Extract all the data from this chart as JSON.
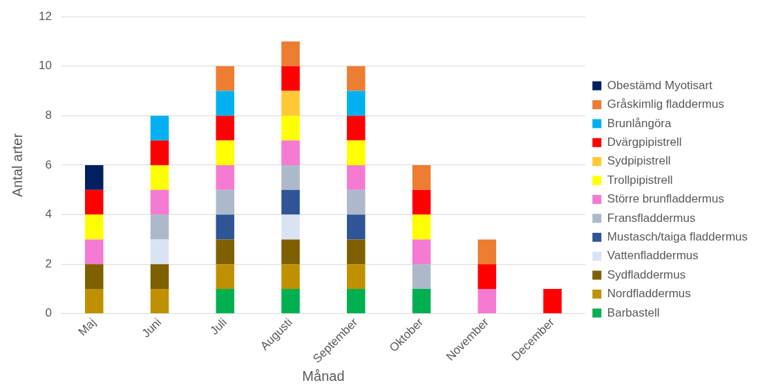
{
  "chart_data": {
    "type": "bar",
    "stacked": true,
    "xlabel": "Månad",
    "ylabel": "Antal arter",
    "categories": [
      "Maj",
      "Juni",
      "Juli",
      "Augusti",
      "September",
      "Oktober",
      "November",
      "December"
    ],
    "ylim": [
      0,
      12
    ],
    "yticks": [
      0,
      2,
      4,
      6,
      8,
      10,
      12
    ],
    "grid": "y",
    "legend": "right",
    "series": [
      {
        "name": "Barbastell",
        "color": "#00b050",
        "values": [
          null,
          null,
          1,
          1,
          1,
          1,
          null,
          null
        ]
      },
      {
        "name": "Nordfladdermus",
        "color": "#bf9000",
        "values": [
          1,
          1,
          1,
          1,
          1,
          null,
          null,
          null
        ]
      },
      {
        "name": "Sydfladdermus",
        "color": "#7f6000",
        "values": [
          1,
          1,
          1,
          1,
          1,
          null,
          null,
          null
        ]
      },
      {
        "name": "Vattenfladdermus",
        "color": "#dae3f3",
        "values": [
          null,
          1,
          null,
          1,
          null,
          null,
          null,
          null
        ]
      },
      {
        "name": "Mustasch/taiga fladdermus",
        "color": "#2f5597",
        "values": [
          null,
          null,
          1,
          1,
          1,
          null,
          null,
          null
        ]
      },
      {
        "name": "Fransfladdermus",
        "color": "#adb9ca",
        "values": [
          null,
          1,
          1,
          1,
          1,
          1,
          null,
          null
        ]
      },
      {
        "name": "Större brunfladdermus",
        "color": "#f47ad2",
        "values": [
          1,
          1,
          1,
          1,
          1,
          1,
          1,
          null
        ]
      },
      {
        "name": "Trollpipistrell",
        "color": "#ffff00",
        "values": [
          1,
          1,
          1,
          1,
          1,
          1,
          null,
          null
        ]
      },
      {
        "name": "Sydpipistrell",
        "color": "#ffc936",
        "values": [
          null,
          null,
          null,
          1,
          null,
          null,
          null,
          null
        ]
      },
      {
        "name": "Dvärgpipistrell",
        "color": "#ff0000",
        "values": [
          1,
          1,
          1,
          1,
          1,
          1,
          1,
          1
        ]
      },
      {
        "name": "Brunlångöra",
        "color": "#00b0f0",
        "values": [
          null,
          1,
          1,
          null,
          1,
          null,
          null,
          null
        ]
      },
      {
        "name": "Gråskimlig fladdermus",
        "color": "#ed7d31",
        "values": [
          null,
          null,
          1,
          1,
          1,
          1,
          1,
          null
        ]
      },
      {
        "name": "Obestämd Myotisart",
        "color": "#002060",
        "values": [
          1,
          null,
          null,
          null,
          null,
          null,
          null,
          null
        ]
      }
    ]
  }
}
